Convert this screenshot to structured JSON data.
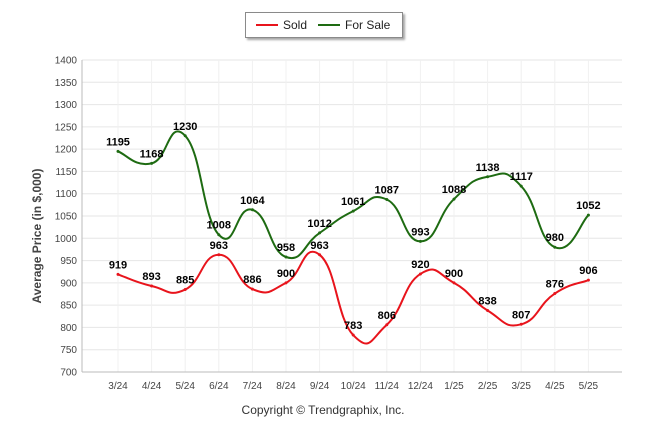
{
  "chart_data": {
    "type": "line",
    "ylabel": "Average Price (in $,000)",
    "ylim": [
      700,
      1400
    ],
    "yticks": [
      700,
      750,
      800,
      850,
      900,
      950,
      1000,
      1050,
      1100,
      1150,
      1200,
      1250,
      1300,
      1350,
      1400
    ],
    "categories": [
      "3/24",
      "4/24",
      "5/24",
      "6/24",
      "7/24",
      "8/24",
      "9/24",
      "10/24",
      "11/24",
      "12/24",
      "1/25",
      "2/25",
      "3/25",
      "4/25",
      "5/25"
    ],
    "grid": true,
    "legend_position": "top-center",
    "series": [
      {
        "name": "Sold",
        "color": "#e8141c",
        "values": [
          919,
          893,
          885,
          963,
          886,
          900,
          963,
          783,
          806,
          920,
          900,
          838,
          807,
          876,
          906
        ]
      },
      {
        "name": "For Sale",
        "color": "#1e6b12",
        "values": [
          1195,
          1168,
          1230,
          1008,
          1064,
          958,
          1012,
          1061,
          1087,
          993,
          1088,
          1138,
          1117,
          980,
          1052
        ]
      }
    ]
  },
  "legend": {
    "sold_label": "Sold",
    "for_sale_label": "For Sale"
  },
  "footer": {
    "copyright": "Copyright © Trendgraphix, Inc."
  }
}
